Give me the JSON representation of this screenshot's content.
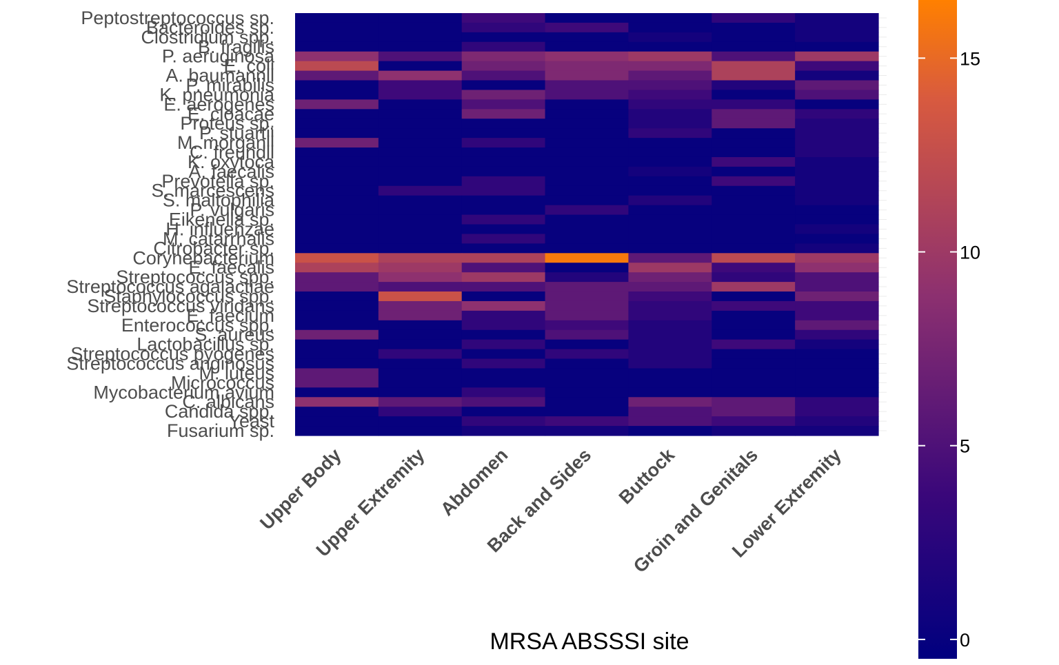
{
  "chart_data": {
    "type": "heatmap",
    "xlabel": "MRSA ABSSSI site",
    "ylabel": "",
    "columns": [
      "Upper Body",
      "Upper Extremity",
      "Abdomen",
      "Back and Sides",
      "Buttock",
      "Groin and Genitals",
      "Lower Extremity"
    ],
    "rows": [
      "Peptostreptococcus sp.",
      "Bacteroides sp.",
      "Clostridium spp.",
      "B. fragilis",
      "P. aeruginosa",
      "E. coli",
      "A. baumannii",
      "P. mirabilis",
      "K. pneumonia",
      "E. aerogenes",
      "E. cloacae",
      "Proteus sp.",
      "P. stuartii",
      "M. morganii",
      "C. freundii",
      "K. oxytoca",
      "A. faecalis",
      "Prevotella sp.",
      "S. marcescens",
      "S. maltophilia",
      "P. vulgaris",
      "Eikenella sp.",
      "H. influenzae",
      "M. catarrhalis",
      "Citrobacter sp.",
      "Corynebacterium",
      "E. faecalis",
      "Streptococcus spp.",
      "Streptococcus agalactiae",
      "Staphylococcus spp.",
      "Streptococcus viridans",
      "E. faecium",
      "Enterococcus spp.",
      "S. aureus",
      "Lactobacillus sp.",
      "Streptococcus pyogenes",
      "Streptococcus anginosus",
      "M. luteus",
      "Micrococcus",
      "Mycobacterium avium",
      "C. albicans",
      "Candida spp.",
      "Yeast",
      "Fusarium sp."
    ],
    "values": [
      [
        0,
        0,
        4,
        0,
        0,
        3,
        1
      ],
      [
        0,
        0,
        3,
        4,
        0,
        0,
        1
      ],
      [
        0,
        0,
        0,
        0,
        1,
        0,
        1
      ],
      [
        0,
        0,
        3,
        0,
        0,
        0,
        0
      ],
      [
        9,
        5,
        8,
        9,
        10,
        5,
        10
      ],
      [
        12,
        0,
        7,
        8,
        8,
        11,
        4
      ],
      [
        6,
        9,
        5,
        8,
        6,
        11,
        1
      ],
      [
        0,
        4,
        0,
        5,
        5,
        2,
        6
      ],
      [
        0,
        4,
        7,
        5,
        4,
        0,
        5
      ],
      [
        7,
        0,
        5,
        0,
        3,
        3,
        0
      ],
      [
        0,
        0,
        7,
        0,
        2,
        6,
        3
      ],
      [
        0,
        0,
        0,
        0,
        2,
        6,
        2
      ],
      [
        0,
        0,
        0,
        0,
        3,
        0,
        2
      ],
      [
        7,
        0,
        3,
        0,
        0,
        0,
        2
      ],
      [
        0,
        0,
        0,
        0,
        0,
        0,
        2
      ],
      [
        0,
        0,
        0,
        0,
        0,
        4,
        1
      ],
      [
        0,
        0,
        0,
        0,
        1,
        0,
        1
      ],
      [
        0,
        0,
        3,
        0,
        0,
        4,
        1
      ],
      [
        0,
        3,
        3,
        0,
        0,
        0,
        1
      ],
      [
        0,
        0,
        0,
        0,
        2,
        0,
        1
      ],
      [
        0,
        0,
        0,
        3,
        0,
        0,
        0
      ],
      [
        0,
        0,
        3,
        0,
        0,
        0,
        0
      ],
      [
        0,
        0,
        0,
        0,
        0,
        0,
        1
      ],
      [
        0,
        0,
        3,
        0,
        0,
        0,
        0
      ],
      [
        0,
        0,
        0,
        0,
        0,
        0,
        1
      ],
      [
        13,
        11,
        11,
        16,
        6,
        12,
        10
      ],
      [
        11,
        10,
        5,
        0,
        10,
        4,
        9
      ],
      [
        6,
        9,
        10,
        2,
        7,
        3,
        5
      ],
      [
        6,
        5,
        5,
        6,
        6,
        10,
        5
      ],
      [
        0,
        13,
        0,
        6,
        4,
        0,
        7
      ],
      [
        0,
        7,
        9,
        6,
        3,
        4,
        4
      ],
      [
        0,
        7,
        3,
        6,
        3,
        0,
        4
      ],
      [
        0,
        0,
        3,
        4,
        2,
        0,
        6
      ],
      [
        7,
        0,
        0,
        5,
        2,
        0,
        3
      ],
      [
        0,
        0,
        3,
        0,
        2,
        4,
        1
      ],
      [
        0,
        3,
        0,
        3,
        2,
        0,
        0
      ],
      [
        0,
        0,
        3,
        0,
        2,
        0,
        0
      ],
      [
        6,
        0,
        0,
        0,
        0,
        0,
        0
      ],
      [
        6,
        0,
        0,
        0,
        0,
        0,
        0
      ],
      [
        0,
        0,
        3,
        0,
        0,
        0,
        0
      ],
      [
        9,
        6,
        5,
        0,
        7,
        6,
        3
      ],
      [
        0,
        3,
        0,
        0,
        5,
        6,
        3
      ],
      [
        0,
        0,
        3,
        4,
        5,
        4,
        2
      ],
      [
        0,
        0,
        1,
        1,
        0,
        1,
        1
      ]
    ],
    "colorbar": {
      "ticks": [
        0,
        5,
        10,
        15
      ],
      "range": [
        -0.5,
        16.5
      ],
      "colors": [
        "#00007F",
        "#3A077A",
        "#8C3070",
        "#D85A3F",
        "#FF8000"
      ],
      "stops": [
        0,
        0.25,
        0.55,
        0.85,
        1
      ]
    },
    "legend": "right",
    "grid": true
  }
}
